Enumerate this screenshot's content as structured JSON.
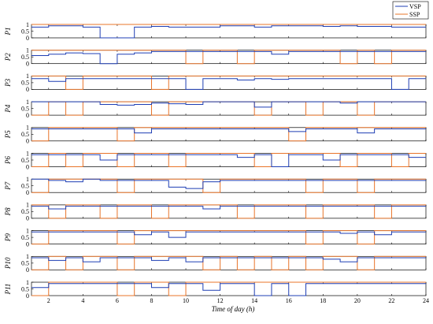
{
  "chart_data": {
    "type": "line",
    "xlabel": "Time of day (h)",
    "xlim": [
      1,
      24
    ],
    "x_ticks": [
      2,
      4,
      6,
      8,
      10,
      12,
      14,
      16,
      18,
      20,
      22,
      24
    ],
    "ylim": [
      0,
      1
    ],
    "y_ticks": [
      0,
      0.5,
      1
    ],
    "y_tick_labels": [
      "0",
      "0.5",
      "1"
    ],
    "grid": false,
    "legend_position": "top-right",
    "legend": [
      {
        "name": "VSP",
        "color": "#1f3fb4"
      },
      {
        "name": "SSP",
        "color": "#e8742a"
      }
    ],
    "panels": [
      {
        "label": "P1",
        "VSP": [
          0.8,
          0.8,
          0.9,
          0.9,
          0.8,
          0,
          0,
          0.8,
          0.85,
          0.8,
          0.8,
          0.8,
          0.9,
          0.9,
          0.8,
          0.9,
          0.9,
          0.9,
          0.85,
          0.9,
          0.85,
          0.85,
          0.8,
          0.8
        ],
        "SSP": [
          1,
          1,
          1,
          1,
          1,
          1,
          1,
          1,
          1,
          1,
          1,
          1,
          1,
          1,
          1,
          1,
          1,
          1,
          1,
          1,
          1,
          1,
          1,
          1
        ]
      },
      {
        "label": "P2",
        "VSP": [
          0.9,
          0.6,
          0.7,
          0.8,
          0.75,
          0,
          0.7,
          0.8,
          0.9,
          0.9,
          0.9,
          0.9,
          0.9,
          0.9,
          0.9,
          0.7,
          0.9,
          0.9,
          0.9,
          0.9,
          0.9,
          0.9,
          0.9,
          0.9
        ],
        "SSP": [
          1,
          1,
          1,
          1,
          1,
          1,
          1,
          1,
          1,
          1,
          0,
          1,
          1,
          0,
          1,
          1,
          1,
          1,
          1,
          0,
          1,
          0,
          1,
          1
        ]
      },
      {
        "label": "P3",
        "VSP": [
          0.8,
          0.8,
          0.6,
          0.8,
          0.8,
          0.8,
          0.8,
          0.8,
          0.8,
          0.8,
          0,
          0.8,
          0.8,
          0.7,
          0.8,
          0.75,
          0.8,
          0.8,
          0.8,
          0.8,
          0.8,
          0.8,
          0,
          0.8
        ],
        "SSP": [
          1,
          1,
          1,
          0,
          1,
          1,
          1,
          1,
          0,
          1,
          1,
          1,
          1,
          1,
          1,
          1,
          1,
          1,
          1,
          1,
          1,
          1,
          1,
          1
        ]
      },
      {
        "label": "P4",
        "VSP": [
          1,
          1,
          1,
          1,
          1,
          0.8,
          0.75,
          0.8,
          0.9,
          0.85,
          0.8,
          1,
          1,
          1,
          0.6,
          1,
          1,
          1,
          1,
          0.9,
          1,
          1,
          1,
          1
        ],
        "SSP": [
          1,
          0,
          1,
          0,
          1,
          1,
          1,
          1,
          0,
          1,
          1,
          1,
          1,
          1,
          0,
          1,
          1,
          0,
          1,
          1,
          0,
          1,
          1,
          1
        ]
      },
      {
        "label": "P5",
        "VSP": [
          0.9,
          0.9,
          0.9,
          0.9,
          0.9,
          0.9,
          0.9,
          0.6,
          0.9,
          0.9,
          0.9,
          0.9,
          0.9,
          0.9,
          0.9,
          0.9,
          0.7,
          0.9,
          0.9,
          0.9,
          0.6,
          0.9,
          0.9,
          0.9
        ],
        "SSP": [
          1,
          0,
          1,
          1,
          1,
          1,
          0,
          1,
          1,
          1,
          1,
          1,
          1,
          1,
          1,
          1,
          0,
          1,
          1,
          1,
          1,
          1,
          1,
          1
        ]
      },
      {
        "label": "P6",
        "VSP": [
          0.9,
          0.9,
          0.9,
          0.9,
          0.9,
          0.5,
          0.9,
          0.9,
          0.9,
          0.9,
          0.9,
          0.9,
          0.9,
          0.7,
          0.9,
          0,
          0.9,
          0.9,
          0.5,
          0.9,
          0.9,
          0.9,
          0.9,
          0.7
        ],
        "SSP": [
          1,
          0,
          1,
          0,
          1,
          1,
          0,
          1,
          1,
          0,
          1,
          1,
          1,
          1,
          0,
          1,
          1,
          1,
          1,
          0,
          1,
          1,
          0,
          1
        ]
      },
      {
        "label": "P7",
        "VSP": [
          0.9,
          1,
          0.9,
          0.8,
          1,
          0.9,
          0.9,
          0.9,
          0.9,
          0.4,
          0.3,
          0.8,
          0.9,
          0.9,
          0.9,
          0.9,
          0.9,
          0.9,
          0.9,
          0.9,
          0.9,
          0.9,
          0.9,
          0.9
        ],
        "SSP": [
          1,
          0,
          1,
          1,
          1,
          1,
          0,
          1,
          1,
          1,
          1,
          0,
          1,
          1,
          1,
          1,
          1,
          0,
          1,
          1,
          0,
          1,
          1,
          1
        ]
      },
      {
        "label": "P8",
        "VSP": [
          0.9,
          0.9,
          0.7,
          0.9,
          0.9,
          0.9,
          0.9,
          0.9,
          0.9,
          0.9,
          0.9,
          0.7,
          0.9,
          0.9,
          0.9,
          0.9,
          0.9,
          0.9,
          0.9,
          0.9,
          0.9,
          0.9,
          0.9,
          0.9
        ],
        "SSP": [
          1,
          1,
          0,
          1,
          1,
          0,
          1,
          1,
          0,
          1,
          1,
          1,
          1,
          0,
          1,
          1,
          1,
          0,
          1,
          1,
          1,
          0,
          1,
          1
        ]
      },
      {
        "label": "P9",
        "VSP": [
          0.6,
          0.9,
          0.9,
          0.9,
          0.9,
          0.9,
          0.9,
          0.7,
          0.9,
          0.5,
          0.9,
          0.9,
          0.9,
          0.9,
          0.9,
          0.9,
          0.9,
          0.9,
          0.9,
          0.8,
          0.9,
          0.7,
          0.9,
          0.9
        ],
        "SSP": [
          1,
          0,
          1,
          1,
          1,
          1,
          0,
          1,
          1,
          1,
          1,
          1,
          1,
          1,
          1,
          1,
          1,
          0,
          1,
          1,
          0,
          1,
          1,
          1
        ]
      },
      {
        "label": "P10",
        "VSP": [
          0.9,
          0.9,
          0.7,
          0.9,
          0.6,
          0.9,
          0.9,
          0.9,
          0.7,
          0.9,
          0.6,
          0.9,
          0.9,
          0.9,
          0.9,
          0.9,
          0.9,
          0.9,
          0.8,
          0.6,
          0.9,
          0.9,
          0.9,
          0.9
        ],
        "SSP": [
          1,
          0,
          1,
          0,
          1,
          1,
          0,
          1,
          1,
          1,
          1,
          0,
          1,
          0,
          1,
          0,
          1,
          0,
          1,
          1,
          0,
          1,
          1,
          1
        ]
      },
      {
        "label": "P11",
        "VSP": [
          0.9,
          0.6,
          0.9,
          0.9,
          0.9,
          0.9,
          0.9,
          0.9,
          0.6,
          0.9,
          0.9,
          0.4,
          0.9,
          0.9,
          0,
          0.9,
          0,
          0.9,
          0.9,
          0.9,
          0.9,
          0.9,
          0.9,
          0.9
        ],
        "SSP": [
          1,
          0,
          1,
          1,
          1,
          1,
          0,
          1,
          1,
          0,
          1,
          1,
          1,
          1,
          1,
          1,
          1,
          1,
          1,
          1,
          1,
          1,
          1,
          1
        ]
      }
    ]
  }
}
